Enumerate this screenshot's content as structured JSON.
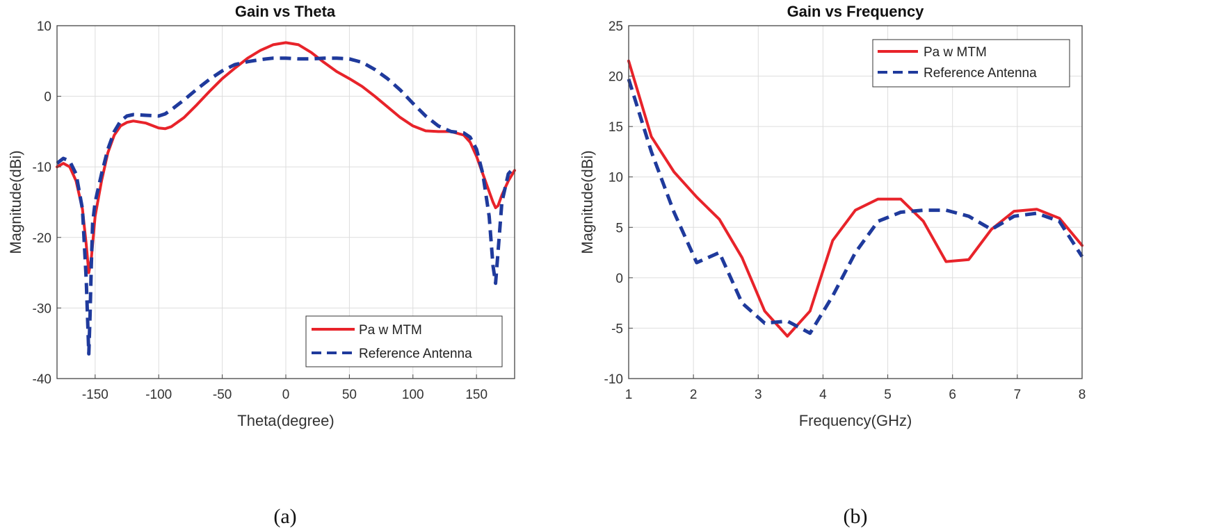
{
  "chart_data": [
    {
      "type": "line",
      "title": "Gain vs Theta",
      "xlabel": "Theta(degree)",
      "ylabel": "Magnitude(dBi)",
      "xlim": [
        -180,
        180
      ],
      "ylim": [
        -40,
        10
      ],
      "xticks": [
        -150,
        -100,
        -50,
        0,
        50,
        100,
        150
      ],
      "yticks": [
        -40,
        -30,
        -20,
        -10,
        0,
        10
      ],
      "grid": true,
      "legend_position": "bottom-right",
      "caption": "(a)",
      "series": [
        {
          "name": "Pa w MTM",
          "color": "#e8232a",
          "style": "solid",
          "x": [
            -180,
            -175,
            -170,
            -165,
            -160,
            -157,
            -155,
            -153,
            -150,
            -145,
            -140,
            -135,
            -130,
            -125,
            -120,
            -110,
            -100,
            -95,
            -90,
            -80,
            -70,
            -60,
            -50,
            -40,
            -30,
            -20,
            -10,
            0,
            10,
            20,
            30,
            40,
            50,
            60,
            70,
            80,
            90,
            100,
            110,
            120,
            130,
            140,
            145,
            150,
            155,
            160,
            163,
            165,
            167,
            170,
            175,
            180
          ],
          "y": [
            -10,
            -9.5,
            -10,
            -12,
            -16,
            -21,
            -25,
            -23,
            -17,
            -12,
            -8,
            -5.5,
            -4.2,
            -3.7,
            -3.5,
            -3.8,
            -4.5,
            -4.6,
            -4.3,
            -3,
            -1.2,
            0.7,
            2.5,
            4,
            5.4,
            6.5,
            7.3,
            7.6,
            7.3,
            6.2,
            4.8,
            3.5,
            2.5,
            1.4,
            0,
            -1.5,
            -3,
            -4.2,
            -4.9,
            -5,
            -5,
            -5.5,
            -6.5,
            -8.5,
            -11,
            -13.5,
            -15,
            -15.8,
            -15.5,
            -14,
            -12,
            -10.5
          ]
        },
        {
          "name": "Reference Antenna",
          "color": "#1f3a9c",
          "style": "dashed",
          "x": [
            -180,
            -175,
            -170,
            -165,
            -160,
            -157,
            -155,
            -154,
            -153,
            -152,
            -150,
            -145,
            -140,
            -135,
            -130,
            -125,
            -120,
            -110,
            -100,
            -95,
            -90,
            -80,
            -70,
            -60,
            -50,
            -40,
            -30,
            -20,
            -10,
            0,
            10,
            20,
            30,
            40,
            50,
            60,
            70,
            80,
            90,
            100,
            110,
            120,
            130,
            140,
            145,
            150,
            155,
            160,
            163,
            165,
            167,
            170,
            175,
            180
          ],
          "y": [
            -9.5,
            -8.8,
            -9.2,
            -11,
            -16,
            -26,
            -36.5,
            -31,
            -24,
            -18,
            -15,
            -11,
            -7.5,
            -5,
            -3.5,
            -2.8,
            -2.6,
            -2.7,
            -2.8,
            -2.5,
            -1.9,
            -0.5,
            1,
            2.4,
            3.6,
            4.5,
            4.9,
            5.2,
            5.4,
            5.4,
            5.3,
            5.3,
            5.4,
            5.4,
            5.3,
            4.8,
            3.8,
            2.5,
            0.9,
            -1,
            -2.8,
            -4.2,
            -5,
            -5.2,
            -5.8,
            -7.5,
            -11,
            -17,
            -24,
            -26.5,
            -22,
            -15,
            -11,
            -10
          ]
        }
      ]
    },
    {
      "type": "line",
      "title": "Gain vs Frequency",
      "xlabel": "Frequency(GHz)",
      "ylabel": "Magnitude(dBi)",
      "xlim": [
        1,
        8
      ],
      "ylim": [
        -10,
        25
      ],
      "xticks": [
        1,
        2,
        3,
        4,
        5,
        6,
        7,
        8
      ],
      "yticks": [
        -10,
        -5,
        0,
        5,
        10,
        15,
        20,
        25
      ],
      "grid": true,
      "legend_position": "top-right",
      "caption": "(b)",
      "series": [
        {
          "name": "Pa w MTM",
          "color": "#e8232a",
          "style": "solid",
          "x": [
            1.0,
            1.35,
            1.7,
            2.05,
            2.4,
            2.75,
            3.1,
            3.45,
            3.8,
            4.15,
            4.5,
            4.85,
            5.2,
            5.55,
            5.9,
            6.25,
            6.6,
            6.95,
            7.3,
            7.65,
            8.0
          ],
          "y": [
            21.5,
            14,
            10.5,
            8,
            5.8,
            2,
            -3.3,
            -5.8,
            -3.3,
            3.7,
            6.7,
            7.8,
            7.8,
            5.6,
            1.6,
            1.8,
            4.8,
            6.6,
            6.8,
            5.9,
            3.2
          ]
        },
        {
          "name": "Reference Antenna",
          "color": "#1f3a9c",
          "style": "dashed",
          "x": [
            1.0,
            1.35,
            1.7,
            2.05,
            2.4,
            2.75,
            3.1,
            3.45,
            3.8,
            4.15,
            4.5,
            4.85,
            5.2,
            5.55,
            5.9,
            6.25,
            6.6,
            6.95,
            7.3,
            7.65,
            8.0
          ],
          "y": [
            19.7,
            12.5,
            6.5,
            1.5,
            2.5,
            -2.5,
            -4.5,
            -4.3,
            -5.5,
            -1.8,
            2.5,
            5.6,
            6.5,
            6.7,
            6.7,
            6.1,
            4.8,
            6.1,
            6.4,
            5.6,
            2.1
          ]
        }
      ]
    }
  ]
}
